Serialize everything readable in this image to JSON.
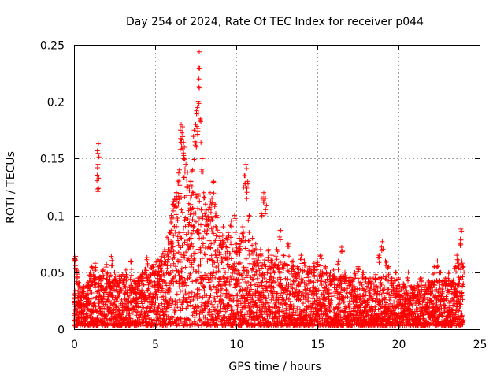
{
  "chart_data": {
    "type": "scatter",
    "title": "Day 254 of 2024, Rate Of TEC Index for receiver p044",
    "xlabel": "GPS time / hours",
    "ylabel": "ROTI / TECUs",
    "xlim": [
      0,
      25
    ],
    "ylim": [
      0,
      0.25
    ],
    "xticks": [
      0,
      5,
      10,
      15,
      20,
      25
    ],
    "xtick_labels": [
      "0",
      "5",
      "10",
      "15",
      "20",
      "25"
    ],
    "yticks": [
      0,
      0.05,
      0.1,
      0.15,
      0.2,
      0.25
    ],
    "ytick_labels": [
      "0",
      "0.05",
      "0.1",
      "0.15",
      "0.2",
      "0.25"
    ],
    "grid": true,
    "marker": "+",
    "marker_color": "#ff0000",
    "series": [
      {
        "name": "ROTI",
        "points": [
          [
            0.0,
            0.008
          ],
          [
            0.05,
            0.062
          ],
          [
            0.1,
            0.064
          ],
          [
            0.15,
            0.052
          ],
          [
            0.2,
            0.045
          ],
          [
            0.3,
            0.041
          ],
          [
            0.35,
            0.025
          ],
          [
            0.5,
            0.03
          ],
          [
            0.6,
            0.036
          ],
          [
            0.8,
            0.04
          ],
          [
            1.0,
            0.05
          ],
          [
            1.1,
            0.055
          ],
          [
            1.2,
            0.048
          ],
          [
            1.3,
            0.058
          ],
          [
            1.45,
            0.142
          ],
          [
            1.48,
            0.145
          ],
          [
            1.5,
            0.163
          ],
          [
            1.6,
            0.045
          ],
          [
            1.8,
            0.052
          ],
          [
            2.0,
            0.057
          ],
          [
            2.2,
            0.042
          ],
          [
            2.3,
            0.064
          ],
          [
            2.5,
            0.05
          ],
          [
            2.8,
            0.046
          ],
          [
            3.0,
            0.048
          ],
          [
            3.2,
            0.052
          ],
          [
            3.5,
            0.06
          ],
          [
            3.8,
            0.035
          ],
          [
            4.0,
            0.045
          ],
          [
            4.2,
            0.05
          ],
          [
            4.4,
            0.053
          ],
          [
            4.5,
            0.063
          ],
          [
            4.7,
            0.048
          ],
          [
            5.0,
            0.05
          ],
          [
            5.2,
            0.055
          ],
          [
            5.4,
            0.06
          ],
          [
            5.6,
            0.065
          ],
          [
            5.8,
            0.07
          ],
          [
            5.9,
            0.085
          ],
          [
            6.0,
            0.1
          ],
          [
            6.1,
            0.11
          ],
          [
            6.2,
            0.115
          ],
          [
            6.3,
            0.12
          ],
          [
            6.4,
            0.13
          ],
          [
            6.5,
            0.14
          ],
          [
            6.55,
            0.175
          ],
          [
            6.6,
            0.18
          ],
          [
            6.7,
            0.178
          ],
          [
            6.75,
            0.155
          ],
          [
            6.8,
            0.16
          ],
          [
            6.9,
            0.145
          ],
          [
            7.0,
            0.138
          ],
          [
            7.1,
            0.125
          ],
          [
            7.2,
            0.13
          ],
          [
            7.3,
            0.14
          ],
          [
            7.4,
            0.175
          ],
          [
            7.5,
            0.18
          ],
          [
            7.55,
            0.19
          ],
          [
            7.6,
            0.195
          ],
          [
            7.65,
            0.2
          ],
          [
            7.7,
            0.22
          ],
          [
            7.72,
            0.244
          ],
          [
            7.8,
            0.185
          ],
          [
            7.9,
            0.15
          ],
          [
            8.0,
            0.12
          ],
          [
            8.1,
            0.11
          ],
          [
            8.2,
            0.095
          ],
          [
            8.3,
            0.105
          ],
          [
            8.4,
            0.12
          ],
          [
            8.5,
            0.115
          ],
          [
            8.6,
            0.13
          ],
          [
            8.7,
            0.11
          ],
          [
            8.8,
            0.1
          ],
          [
            9.0,
            0.085
          ],
          [
            9.2,
            0.09
          ],
          [
            9.4,
            0.08
          ],
          [
            9.5,
            0.085
          ],
          [
            9.7,
            0.095
          ],
          [
            9.9,
            0.1
          ],
          [
            10.0,
            0.075
          ],
          [
            10.2,
            0.08
          ],
          [
            10.4,
            0.09
          ],
          [
            10.5,
            0.135
          ],
          [
            10.6,
            0.145
          ],
          [
            10.7,
            0.13
          ],
          [
            10.8,
            0.1
          ],
          [
            11.0,
            0.08
          ],
          [
            11.2,
            0.075
          ],
          [
            11.5,
            0.07
          ],
          [
            11.6,
            0.115
          ],
          [
            11.7,
            0.12
          ],
          [
            11.8,
            0.115
          ],
          [
            12.0,
            0.07
          ],
          [
            12.2,
            0.065
          ],
          [
            12.5,
            0.07
          ],
          [
            12.7,
            0.087
          ],
          [
            12.9,
            0.065
          ],
          [
            13.2,
            0.075
          ],
          [
            13.5,
            0.06
          ],
          [
            13.8,
            0.055
          ],
          [
            14.0,
            0.065
          ],
          [
            14.2,
            0.06
          ],
          [
            14.5,
            0.055
          ],
          [
            14.8,
            0.058
          ],
          [
            15.0,
            0.06
          ],
          [
            15.2,
            0.065
          ],
          [
            15.5,
            0.055
          ],
          [
            15.8,
            0.05
          ],
          [
            16.0,
            0.052
          ],
          [
            16.3,
            0.06
          ],
          [
            16.5,
            0.072
          ],
          [
            16.7,
            0.05
          ],
          [
            17.0,
            0.045
          ],
          [
            17.3,
            0.05
          ],
          [
            17.5,
            0.055
          ],
          [
            17.8,
            0.05
          ],
          [
            18.0,
            0.045
          ],
          [
            18.3,
            0.042
          ],
          [
            18.6,
            0.048
          ],
          [
            18.8,
            0.065
          ],
          [
            19.0,
            0.077
          ],
          [
            19.2,
            0.06
          ],
          [
            19.4,
            0.055
          ],
          [
            19.6,
            0.045
          ],
          [
            19.8,
            0.05
          ],
          [
            20.0,
            0.045
          ],
          [
            20.3,
            0.04
          ],
          [
            20.6,
            0.05
          ],
          [
            20.9,
            0.035
          ],
          [
            21.2,
            0.04
          ],
          [
            21.4,
            0.045
          ],
          [
            21.6,
            0.035
          ],
          [
            21.9,
            0.04
          ],
          [
            22.2,
            0.055
          ],
          [
            22.4,
            0.06
          ],
          [
            22.6,
            0.05
          ],
          [
            22.9,
            0.045
          ],
          [
            23.1,
            0.05
          ],
          [
            23.3,
            0.042
          ],
          [
            23.5,
            0.055
          ],
          [
            23.6,
            0.065
          ],
          [
            23.7,
            0.06
          ],
          [
            23.8,
            0.075
          ],
          [
            23.85,
            0.088
          ],
          [
            23.9,
            0.06
          ],
          [
            24.0,
            0.055
          ]
        ],
        "envelope": [
          [
            0.0,
            0.03
          ],
          [
            1.0,
            0.042
          ],
          [
            2.0,
            0.045
          ],
          [
            3.0,
            0.045
          ],
          [
            4.0,
            0.044
          ],
          [
            4.5,
            0.05
          ],
          [
            5.0,
            0.055
          ],
          [
            5.5,
            0.065
          ],
          [
            6.0,
            0.095
          ],
          [
            6.5,
            0.12
          ],
          [
            7.0,
            0.115
          ],
          [
            7.5,
            0.13
          ],
          [
            8.0,
            0.1
          ],
          [
            8.5,
            0.095
          ],
          [
            9.0,
            0.08
          ],
          [
            9.5,
            0.075
          ],
          [
            10.0,
            0.07
          ],
          [
            10.5,
            0.085
          ],
          [
            11.0,
            0.07
          ],
          [
            11.5,
            0.06
          ],
          [
            12.0,
            0.058
          ],
          [
            13.0,
            0.055
          ],
          [
            14.0,
            0.05
          ],
          [
            15.0,
            0.05
          ],
          [
            16.0,
            0.045
          ],
          [
            17.0,
            0.043
          ],
          [
            18.0,
            0.042
          ],
          [
            19.0,
            0.045
          ],
          [
            20.0,
            0.038
          ],
          [
            21.0,
            0.035
          ],
          [
            22.0,
            0.04
          ],
          [
            23.0,
            0.04
          ],
          [
            24.0,
            0.045
          ]
        ]
      }
    ]
  }
}
